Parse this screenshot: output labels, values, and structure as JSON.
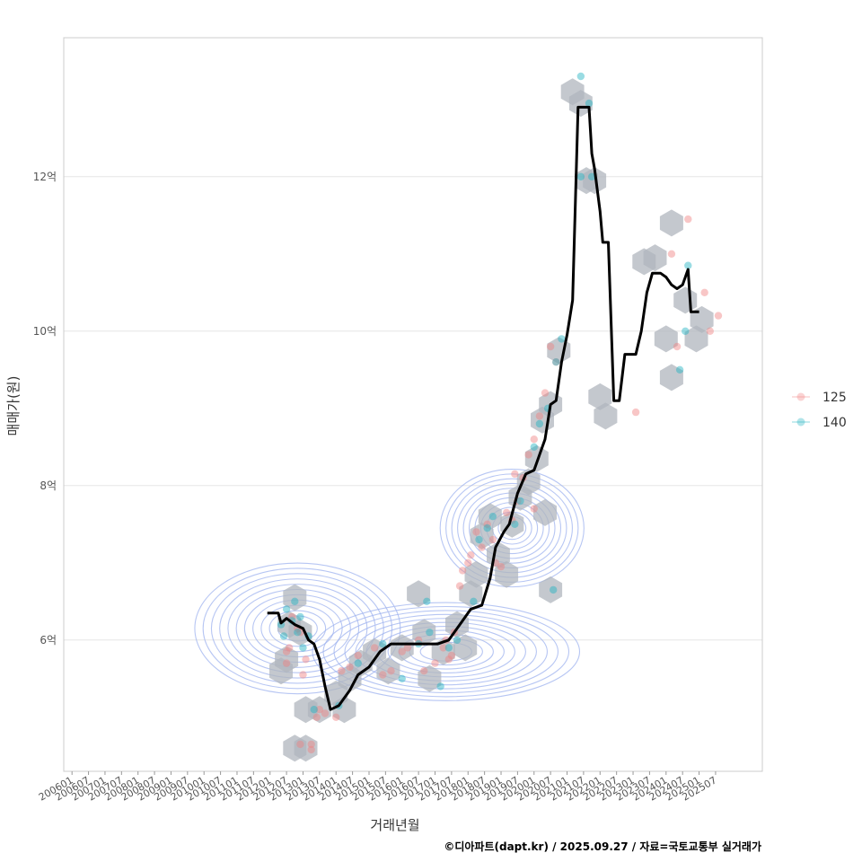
{
  "chart_data": {
    "type": "scatter",
    "xlabel": "거래년월",
    "ylabel": "매매가(원)",
    "caption": "©디아파트(dapt.kr) / 2025.09.27 / 자료=국토교통부 실거래가",
    "x_range": [
      "2005-10",
      "2026-12"
    ],
    "ylim": [
      4.3,
      13.8
    ],
    "y_unit": "억",
    "y_ticks": [
      {
        "value": 6,
        "label": "6억"
      },
      {
        "value": 8,
        "label": "8억"
      },
      {
        "value": 10,
        "label": "10억"
      },
      {
        "value": 12,
        "label": "12억"
      }
    ],
    "x_ticks": [
      "200601",
      "200607",
      "200701",
      "200707",
      "200801",
      "200807",
      "200901",
      "200907",
      "201001",
      "201007",
      "201101",
      "201107",
      "201201",
      "201207",
      "201301",
      "201307",
      "201401",
      "201407",
      "201501",
      "201507",
      "201601",
      "201607",
      "201701",
      "201707",
      "201801",
      "201807",
      "201901",
      "201907",
      "202001",
      "202007",
      "202101",
      "202107",
      "202201",
      "202207",
      "202301",
      "202307",
      "202401",
      "202407",
      "202501",
      "202507"
    ],
    "grid": true,
    "legend_position": "right",
    "colors": {
      "s125": "#f08080",
      "s140": "#20b2c0",
      "median": "#000000",
      "contour": "#9fb3ef",
      "hexbin": "#b0b6bd",
      "grid": "#e5e5e5",
      "panel_border": "#cccccc"
    },
    "series": [
      {
        "name": "125",
        "color": "#f08080",
        "points": [
          [
            "2012-07",
            5.85
          ],
          [
            "2012-07",
            5.7
          ],
          [
            "2012-08",
            5.9
          ],
          [
            "2012-09",
            6.3
          ],
          [
            "2012-11",
            6.15
          ],
          [
            "2012-12",
            6.1
          ],
          [
            "2013-01",
            5.55
          ],
          [
            "2013-02",
            5.75
          ],
          [
            "2012-12",
            4.65
          ],
          [
            "2013-04",
            4.65
          ],
          [
            "2013-04",
            4.58
          ],
          [
            "2013-06",
            5.0
          ],
          [
            "2013-07",
            5.1
          ],
          [
            "2013-09",
            5.05
          ],
          [
            "2014-01",
            5.0
          ],
          [
            "2014-03",
            5.6
          ],
          [
            "2014-06",
            5.65
          ],
          [
            "2014-09",
            5.8
          ],
          [
            "2015-03",
            5.9
          ],
          [
            "2015-06",
            5.55
          ],
          [
            "2015-09",
            5.6
          ],
          [
            "2016-01",
            5.85
          ],
          [
            "2016-03",
            5.9
          ],
          [
            "2016-07",
            6.0
          ],
          [
            "2016-09",
            5.6
          ],
          [
            "2017-01",
            5.7
          ],
          [
            "2017-04",
            5.9
          ],
          [
            "2017-05",
            6.0
          ],
          [
            "2017-06",
            5.75
          ],
          [
            "2017-07",
            5.8
          ],
          [
            "2017-08",
            6.1
          ],
          [
            "2017-10",
            6.7
          ],
          [
            "2017-11",
            6.9
          ],
          [
            "2018-01",
            7.0
          ],
          [
            "2018-02",
            7.1
          ],
          [
            "2018-04",
            7.4
          ],
          [
            "2018-06",
            7.2
          ],
          [
            "2018-08",
            7.5
          ],
          [
            "2018-10",
            7.3
          ],
          [
            "2018-11",
            7.0
          ],
          [
            "2019-01",
            6.95
          ],
          [
            "2019-03",
            7.65
          ],
          [
            "2019-05",
            7.55
          ],
          [
            "2019-07",
            7.8
          ],
          [
            "2019-09",
            8.1
          ],
          [
            "2019-11",
            8.4
          ],
          [
            "2020-01",
            8.6
          ],
          [
            "2020-03",
            8.9
          ],
          [
            "2020-05",
            9.2
          ],
          [
            "2020-07",
            9.8
          ],
          [
            "2020-09",
            9.6
          ],
          [
            "2019-06",
            8.15
          ],
          [
            "2020-01",
            7.7
          ],
          [
            "2023-02",
            8.95
          ],
          [
            "2024-03",
            11.0
          ],
          [
            "2024-05",
            9.8
          ],
          [
            "2024-09",
            11.45
          ],
          [
            "2025-03",
            10.5
          ],
          [
            "2025-05",
            10.0
          ],
          [
            "2025-08",
            10.2
          ]
        ]
      },
      {
        "name": "140",
        "color": "#20b2c0",
        "points": [
          [
            "2012-05",
            6.2
          ],
          [
            "2012-06",
            6.05
          ],
          [
            "2012-07",
            6.4
          ],
          [
            "2012-09",
            6.25
          ],
          [
            "2012-10",
            6.5
          ],
          [
            "2012-11",
            6.1
          ],
          [
            "2012-12",
            6.3
          ],
          [
            "2013-01",
            5.9
          ],
          [
            "2013-03",
            6.05
          ],
          [
            "2013-05",
            5.1
          ],
          [
            "2014-02",
            5.15
          ],
          [
            "2014-09",
            5.7
          ],
          [
            "2015-06",
            5.95
          ],
          [
            "2016-01",
            5.5
          ],
          [
            "2016-07",
            5.95
          ],
          [
            "2016-10",
            6.5
          ],
          [
            "2016-11",
            6.1
          ],
          [
            "2017-03",
            5.4
          ],
          [
            "2017-06",
            5.9
          ],
          [
            "2017-09",
            6.0
          ],
          [
            "2018-03",
            6.5
          ],
          [
            "2018-05",
            7.3
          ],
          [
            "2018-08",
            7.45
          ],
          [
            "2018-10",
            7.6
          ],
          [
            "2019-06",
            7.5
          ],
          [
            "2019-08",
            7.8
          ],
          [
            "2020-01",
            8.5
          ],
          [
            "2020-03",
            8.8
          ],
          [
            "2020-06",
            9.0
          ],
          [
            "2020-09",
            9.6
          ],
          [
            "2020-11",
            9.9
          ],
          [
            "2020-08",
            6.65
          ],
          [
            "2021-06",
            13.3
          ],
          [
            "2021-09",
            12.95
          ],
          [
            "2021-06",
            12.0
          ],
          [
            "2021-10",
            12.0
          ],
          [
            "2024-06",
            9.5
          ],
          [
            "2024-08",
            10.0
          ],
          [
            "2024-09",
            10.85
          ]
        ]
      }
    ],
    "median_line": [
      [
        "2011-12",
        6.35
      ],
      [
        "2012-04",
        6.35
      ],
      [
        "2012-05",
        6.22
      ],
      [
        "2012-07",
        6.28
      ],
      [
        "2012-10",
        6.2
      ],
      [
        "2013-01",
        6.15
      ],
      [
        "2013-03",
        6.0
      ],
      [
        "2013-05",
        5.95
      ],
      [
        "2013-07",
        5.75
      ],
      [
        "2013-09",
        5.4
      ],
      [
        "2013-11",
        5.1
      ],
      [
        "2014-02",
        5.15
      ],
      [
        "2014-06",
        5.35
      ],
      [
        "2014-09",
        5.55
      ],
      [
        "2015-01",
        5.65
      ],
      [
        "2015-05",
        5.85
      ],
      [
        "2015-09",
        5.95
      ],
      [
        "2016-01",
        5.95
      ],
      [
        "2016-06",
        5.95
      ],
      [
        "2016-10",
        5.95
      ],
      [
        "2017-02",
        5.95
      ],
      [
        "2017-06",
        6.0
      ],
      [
        "2017-10",
        6.2
      ],
      [
        "2018-02",
        6.4
      ],
      [
        "2018-06",
        6.45
      ],
      [
        "2018-09",
        6.8
      ],
      [
        "2018-11",
        7.2
      ],
      [
        "2019-02",
        7.4
      ],
      [
        "2019-04",
        7.5
      ],
      [
        "2019-07",
        7.9
      ],
      [
        "2019-10",
        8.15
      ],
      [
        "2020-01",
        8.2
      ],
      [
        "2020-03",
        8.4
      ],
      [
        "2020-05",
        8.6
      ],
      [
        "2020-07",
        9.05
      ],
      [
        "2020-09",
        9.1
      ],
      [
        "2020-11",
        9.6
      ],
      [
        "2021-01",
        9.95
      ],
      [
        "2021-03",
        10.4
      ],
      [
        "2021-05",
        12.9
      ],
      [
        "2021-07",
        12.9
      ],
      [
        "2021-09",
        12.9
      ],
      [
        "2021-10",
        12.3
      ],
      [
        "2021-11",
        12.1
      ],
      [
        "2022-01",
        11.55
      ],
      [
        "2022-02",
        11.15
      ],
      [
        "2022-04",
        11.15
      ],
      [
        "2022-06",
        9.1
      ],
      [
        "2022-08",
        9.1
      ],
      [
        "2022-10",
        9.7
      ],
      [
        "2023-02",
        9.7
      ],
      [
        "2023-04",
        10.0
      ],
      [
        "2023-06",
        10.5
      ],
      [
        "2023-08",
        10.75
      ],
      [
        "2023-11",
        10.75
      ],
      [
        "2024-01",
        10.7
      ],
      [
        "2024-03",
        10.6
      ],
      [
        "2024-05",
        10.55
      ],
      [
        "2024-07",
        10.6
      ],
      [
        "2024-09",
        10.8
      ],
      [
        "2024-10",
        10.25
      ],
      [
        "2025-01",
        10.25
      ]
    ],
    "hexbin_cells": [
      [
        "2012-05",
        5.6
      ],
      [
        "2012-07",
        5.75
      ],
      [
        "2012-08",
        6.2
      ],
      [
        "2012-10",
        6.55
      ],
      [
        "2012-12",
        6.1
      ],
      [
        "2013-02",
        5.1
      ],
      [
        "2012-10",
        4.6
      ],
      [
        "2013-02",
        4.6
      ],
      [
        "2013-07",
        5.1
      ],
      [
        "2014-01",
        5.3
      ],
      [
        "2014-06",
        5.5
      ],
      [
        "2014-04",
        5.1
      ],
      [
        "2014-10",
        5.7
      ],
      [
        "2015-03",
        5.85
      ],
      [
        "2015-08",
        5.6
      ],
      [
        "2016-01",
        5.9
      ],
      [
        "2016-07",
        6.6
      ],
      [
        "2016-09",
        6.1
      ],
      [
        "2016-11",
        5.5
      ],
      [
        "2017-04",
        5.85
      ],
      [
        "2017-09",
        6.2
      ],
      [
        "2017-12",
        5.9
      ],
      [
        "2018-02",
        6.6
      ],
      [
        "2018-04",
        6.85
      ],
      [
        "2018-06",
        7.35
      ],
      [
        "2018-09",
        7.6
      ],
      [
        "2018-12",
        7.1
      ],
      [
        "2019-03",
        6.85
      ],
      [
        "2019-05",
        7.5
      ],
      [
        "2019-08",
        7.85
      ],
      [
        "2019-11",
        8.05
      ],
      [
        "2020-02",
        8.35
      ],
      [
        "2020-04",
        8.85
      ],
      [
        "2020-05",
        7.65
      ],
      [
        "2020-07",
        9.05
      ],
      [
        "2020-10",
        9.75
      ],
      [
        "2020-07",
        6.65
      ],
      [
        "2021-03",
        13.1
      ],
      [
        "2021-06",
        12.95
      ],
      [
        "2021-08",
        11.95
      ],
      [
        "2021-11",
        11.95
      ],
      [
        "2022-01",
        9.15
      ],
      [
        "2022-03",
        8.9
      ],
      [
        "2023-05",
        10.9
      ],
      [
        "2023-09",
        10.95
      ],
      [
        "2024-01",
        9.9
      ],
      [
        "2024-03",
        9.4
      ],
      [
        "2024-03",
        11.4
      ],
      [
        "2024-08",
        10.4
      ],
      [
        "2024-12",
        9.9
      ],
      [
        "2025-02",
        10.15
      ]
    ]
  }
}
